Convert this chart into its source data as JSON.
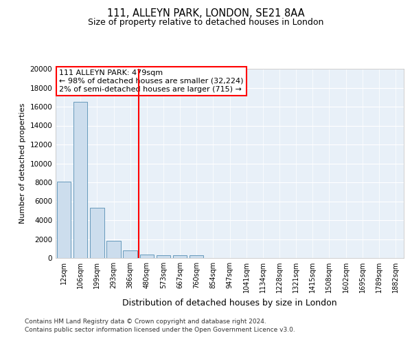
{
  "title1": "111, ALLEYN PARK, LONDON, SE21 8AA",
  "title2": "Size of property relative to detached houses in London",
  "xlabel": "Distribution of detached houses by size in London",
  "ylabel": "Number of detached properties",
  "categories": [
    "12sqm",
    "106sqm",
    "199sqm",
    "293sqm",
    "386sqm",
    "480sqm",
    "573sqm",
    "667sqm",
    "760sqm",
    "854sqm",
    "947sqm",
    "1041sqm",
    "1134sqm",
    "1228sqm",
    "1321sqm",
    "1415sqm",
    "1508sqm",
    "1602sqm",
    "1695sqm",
    "1789sqm",
    "1882sqm"
  ],
  "values": [
    8100,
    16500,
    5300,
    1850,
    800,
    400,
    300,
    300,
    300,
    0,
    0,
    0,
    0,
    0,
    0,
    0,
    0,
    0,
    0,
    0,
    0
  ],
  "bar_color": "#ccdded",
  "bar_edge_color": "#6699bb",
  "vline_x_index": 5,
  "vline_color": "red",
  "annotation_title": "111 ALLEYN PARK: 479sqm",
  "annotation_line2": "← 98% of detached houses are smaller (32,224)",
  "annotation_line3": "2% of semi-detached houses are larger (715) →",
  "ylim": [
    0,
    20000
  ],
  "yticks": [
    0,
    2000,
    4000,
    6000,
    8000,
    10000,
    12000,
    14000,
    16000,
    18000,
    20000
  ],
  "footer_line1": "Contains HM Land Registry data © Crown copyright and database right 2024.",
  "footer_line2": "Contains public sector information licensed under the Open Government Licence v3.0.",
  "bg_color": "#ffffff",
  "plot_bg_color": "#e8f0f8"
}
